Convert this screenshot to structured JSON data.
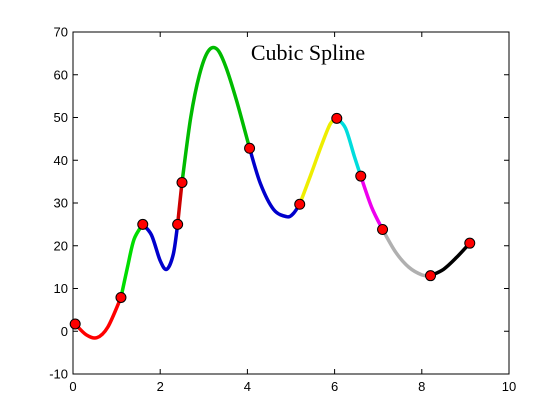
{
  "chart_data": {
    "type": "line",
    "title": "Cubic Spline",
    "xlabel": "",
    "ylabel": "",
    "xlim": [
      0,
      10
    ],
    "ylim": [
      -10,
      70
    ],
    "x_ticks": [
      "0",
      "2",
      "4",
      "6",
      "8",
      "10"
    ],
    "y_ticks": [
      "-10",
      "0",
      "10",
      "20",
      "30",
      "40",
      "50",
      "60",
      "70"
    ],
    "grid": false,
    "marker_color": "#ff0000",
    "points": [
      {
        "x": 0.05,
        "y": 1.7
      },
      {
        "x": 1.1,
        "y": 7.9
      },
      {
        "x": 1.6,
        "y": 25.0
      },
      {
        "x": 2.4,
        "y": 25.0
      },
      {
        "x": 2.5,
        "y": 34.8
      },
      {
        "x": 4.05,
        "y": 42.8
      },
      {
        "x": 5.2,
        "y": 29.7
      },
      {
        "x": 6.05,
        "y": 49.8
      },
      {
        "x": 6.6,
        "y": 36.3
      },
      {
        "x": 7.1,
        "y": 23.8
      },
      {
        "x": 8.2,
        "y": 13.0
      },
      {
        "x": 9.1,
        "y": 20.6
      }
    ],
    "segments": [
      {
        "color": "#ff0000",
        "x": [
          0.05,
          0.3,
          0.55,
          0.8,
          1.1
        ],
        "y": [
          1.7,
          -0.8,
          -1.5,
          1.0,
          7.9
        ]
      },
      {
        "color": "#00dd00",
        "x": [
          1.1,
          1.25,
          1.4,
          1.6
        ],
        "y": [
          7.9,
          15.0,
          21.5,
          25.0
        ]
      },
      {
        "color": "#0000cc",
        "x": [
          1.6,
          1.8,
          2.0,
          2.15,
          2.3,
          2.4
        ],
        "y": [
          25.0,
          22.5,
          16.5,
          14.5,
          18.0,
          25.0
        ]
      },
      {
        "color": "#cc0000",
        "x": [
          2.4,
          2.45,
          2.5
        ],
        "y": [
          25.0,
          30.0,
          34.8
        ]
      },
      {
        "color": "#00bb00",
        "x": [
          2.5,
          2.7,
          2.9,
          3.1,
          3.3,
          3.5,
          3.75,
          4.05
        ],
        "y": [
          34.8,
          50.0,
          60.0,
          65.5,
          66.0,
          62.0,
          54.0,
          42.8
        ]
      },
      {
        "color": "#0000cc",
        "x": [
          4.05,
          4.3,
          4.6,
          4.9,
          5.05,
          5.2
        ],
        "y": [
          42.8,
          34.5,
          28.5,
          26.8,
          27.5,
          29.7
        ]
      },
      {
        "color": "#eeee00",
        "x": [
          5.2,
          5.45,
          5.7,
          5.9,
          6.05
        ],
        "y": [
          29.7,
          36.5,
          43.5,
          48.5,
          49.8
        ]
      },
      {
        "color": "#00dddd",
        "x": [
          6.05,
          6.25,
          6.45,
          6.6
        ],
        "y": [
          49.8,
          47.5,
          41.0,
          36.3
        ]
      },
      {
        "color": "#ee00ee",
        "x": [
          6.6,
          6.85,
          7.1
        ],
        "y": [
          36.3,
          29.0,
          23.8
        ]
      },
      {
        "color": "#b0b0b0",
        "x": [
          7.1,
          7.4,
          7.7,
          8.0,
          8.2
        ],
        "y": [
          23.8,
          18.5,
          15.0,
          13.2,
          13.0
        ]
      },
      {
        "color": "#000000",
        "x": [
          8.2,
          8.5,
          8.8,
          9.1
        ],
        "y": [
          13.0,
          14.5,
          17.3,
          20.6
        ]
      }
    ]
  }
}
